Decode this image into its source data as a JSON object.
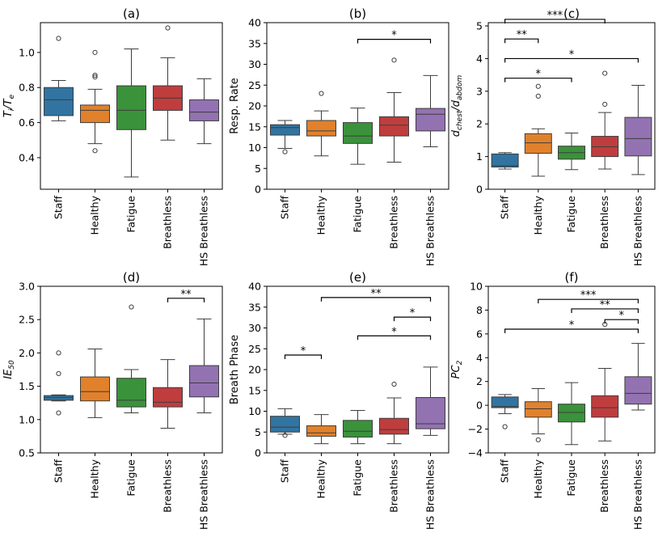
{
  "chart_data": [
    {
      "type": "box",
      "title": "(a)",
      "ylabel": "T_i/T_e",
      "ylabel_main": "T",
      "ylabel_sub1": "i",
      "ylabel_mid": "/T",
      "ylabel_sub2": "e",
      "ylim": [
        0.22,
        1.17
      ],
      "yticks": [
        0.4,
        0.6,
        0.8,
        1.0
      ],
      "ytick_labels": [
        "0.4",
        "0.6",
        "0.8",
        "1.0"
      ],
      "categories": [
        "Staff",
        "Healthy",
        "Fatigue",
        "Breathless",
        "HS Breathless"
      ],
      "colors": [
        "#3274a1",
        "#e1812c",
        "#3a923a",
        "#c03d3e",
        "#9372b2"
      ],
      "boxes": [
        {
          "whislo": 0.61,
          "q1": 0.64,
          "med": 0.73,
          "q3": 0.8,
          "whishi": 0.84,
          "fliers": [
            1.08
          ]
        },
        {
          "whislo": 0.48,
          "q1": 0.6,
          "med": 0.67,
          "q3": 0.7,
          "whishi": 0.79,
          "fliers": [
            1.0,
            0.87,
            0.86,
            0.44
          ]
        },
        {
          "whislo": 0.29,
          "q1": 0.56,
          "med": 0.67,
          "q3": 0.81,
          "whishi": 1.02,
          "fliers": []
        },
        {
          "whislo": 0.5,
          "q1": 0.67,
          "med": 0.74,
          "q3": 0.81,
          "whishi": 0.97,
          "fliers": [
            1.14
          ]
        },
        {
          "whislo": 0.48,
          "q1": 0.61,
          "med": 0.66,
          "q3": 0.73,
          "whishi": 0.85,
          "fliers": []
        }
      ],
      "annotations": []
    },
    {
      "type": "box",
      "title": "(b)",
      "ylabel": "Resp. Rate",
      "ylim": [
        0,
        40
      ],
      "yticks": [
        0,
        5,
        10,
        15,
        20,
        25,
        30,
        35,
        40
      ],
      "ytick_labels": [
        "0",
        "5",
        "10",
        "15",
        "20",
        "25",
        "30",
        "35",
        "40"
      ],
      "categories": [
        "Staff",
        "Healthy",
        "Fatigue",
        "Breathless",
        "HS Breathless"
      ],
      "colors": [
        "#3274a1",
        "#e1812c",
        "#3a923a",
        "#c03d3e",
        "#9372b2"
      ],
      "boxes": [
        {
          "whislo": 9.8,
          "q1": 13.0,
          "med": 14.8,
          "q3": 15.5,
          "whishi": 16.5,
          "fliers": [
            9.0
          ]
        },
        {
          "whislo": 8.0,
          "q1": 12.8,
          "med": 14.0,
          "q3": 16.5,
          "whishi": 18.8,
          "fliers": [
            23.0
          ]
        },
        {
          "whislo": 6.0,
          "q1": 11.0,
          "med": 12.8,
          "q3": 16.0,
          "whishi": 19.5,
          "fliers": []
        },
        {
          "whislo": 6.5,
          "q1": 12.8,
          "med": 15.4,
          "q3": 17.4,
          "whishi": 23.2,
          "fliers": [
            31.0
          ]
        },
        {
          "whislo": 10.2,
          "q1": 14.0,
          "med": 18.0,
          "q3": 19.4,
          "whishi": 27.3,
          "fliers": []
        }
      ],
      "annotations": [
        {
          "from": 2,
          "to": 4,
          "y": 36,
          "text": "*"
        }
      ]
    },
    {
      "type": "box",
      "title": "(c)",
      "ylabel": "d_chest/d_abdom",
      "ylabel_main": "d",
      "ylabel_sub1": "chest",
      "ylabel_mid": "/d",
      "ylabel_sub2": "abdom",
      "ylim": [
        0,
        5.1
      ],
      "yticks": [
        0,
        1,
        2,
        3,
        4,
        5
      ],
      "ytick_labels": [
        "0",
        "1",
        "2",
        "3",
        "4",
        "5"
      ],
      "categories": [
        "Staff",
        "Healthy",
        "Fatigue",
        "Breathless",
        "HS Breathless"
      ],
      "colors": [
        "#3274a1",
        "#e1812c",
        "#3a923a",
        "#c03d3e",
        "#9372b2"
      ],
      "boxes": [
        {
          "whislo": 0.62,
          "q1": 0.68,
          "med": 0.72,
          "q3": 1.08,
          "whishi": 1.12,
          "fliers": []
        },
        {
          "whislo": 0.4,
          "q1": 1.1,
          "med": 1.42,
          "q3": 1.7,
          "whishi": 1.85,
          "fliers": [
            3.15,
            2.85
          ]
        },
        {
          "whislo": 0.6,
          "q1": 0.92,
          "med": 1.12,
          "q3": 1.32,
          "whishi": 1.72,
          "fliers": []
        },
        {
          "whislo": 0.62,
          "q1": 1.0,
          "med": 1.3,
          "q3": 1.62,
          "whishi": 2.35,
          "fliers": [
            3.55,
            2.6
          ]
        },
        {
          "whislo": 0.45,
          "q1": 1.02,
          "med": 1.55,
          "q3": 2.2,
          "whishi": 3.18,
          "fliers": []
        }
      ],
      "annotations": [
        {
          "from": 0,
          "to": 3,
          "y": 5.2,
          "text": "***"
        },
        {
          "from": 0,
          "to": 1,
          "y": 4.6,
          "text": "**"
        },
        {
          "from": 0,
          "to": 4,
          "y": 4.0,
          "text": "*"
        },
        {
          "from": 0,
          "to": 2,
          "y": 3.4,
          "text": "*"
        }
      ]
    },
    {
      "type": "box",
      "title": "(d)",
      "ylabel": "IE_50",
      "ylabel_main": "IE",
      "ylabel_sub1": "50",
      "ylim": [
        0.5,
        3.0
      ],
      "yticks": [
        0.5,
        1.0,
        1.5,
        2.0,
        2.5,
        3.0
      ],
      "ytick_labels": [
        "0.5",
        "1.0",
        "1.5",
        "2.0",
        "2.5",
        "3.0"
      ],
      "categories": [
        "Staff",
        "Healthy",
        "Fatigue",
        "Breathless",
        "HS Breathless"
      ],
      "colors": [
        "#3274a1",
        "#e1812c",
        "#3a923a",
        "#c03d3e",
        "#9372b2"
      ],
      "boxes": [
        {
          "whislo": 1.28,
          "q1": 1.29,
          "med": 1.33,
          "q3": 1.36,
          "whishi": 1.37,
          "fliers": [
            2.0,
            1.69,
            1.1
          ]
        },
        {
          "whislo": 1.03,
          "q1": 1.28,
          "med": 1.42,
          "q3": 1.64,
          "whishi": 2.06,
          "fliers": []
        },
        {
          "whislo": 1.1,
          "q1": 1.19,
          "med": 1.29,
          "q3": 1.62,
          "whishi": 1.75,
          "fliers": [
            2.69
          ]
        },
        {
          "whislo": 0.87,
          "q1": 1.19,
          "med": 1.26,
          "q3": 1.48,
          "whishi": 1.9,
          "fliers": []
        },
        {
          "whislo": 1.1,
          "q1": 1.34,
          "med": 1.55,
          "q3": 1.81,
          "whishi": 2.51,
          "fliers": []
        }
      ],
      "annotations": [
        {
          "from": 3,
          "to": 4,
          "y": 2.82,
          "text": "**"
        }
      ]
    },
    {
      "type": "box",
      "title": "(e)",
      "ylabel": "Breath Phase",
      "ylim": [
        0,
        40
      ],
      "yticks": [
        0,
        5,
        10,
        15,
        20,
        25,
        30,
        35,
        40
      ],
      "ytick_labels": [
        "0",
        "5",
        "10",
        "15",
        "20",
        "25",
        "30",
        "35",
        "40"
      ],
      "categories": [
        "Staff",
        "Healthy",
        "Fatigue",
        "Breathless",
        "HS Breathless"
      ],
      "colors": [
        "#3274a1",
        "#e1812c",
        "#3a923a",
        "#c03d3e",
        "#9372b2"
      ],
      "boxes": [
        {
          "whislo": 4.5,
          "q1": 5.0,
          "med": 6.2,
          "q3": 8.8,
          "whishi": 10.6,
          "fliers": [
            4.2
          ]
        },
        {
          "whislo": 2.2,
          "q1": 4.0,
          "med": 4.8,
          "q3": 6.5,
          "whishi": 9.2,
          "fliers": []
        },
        {
          "whislo": 2.2,
          "q1": 3.8,
          "med": 5.2,
          "q3": 7.8,
          "whishi": 10.2,
          "fliers": []
        },
        {
          "whislo": 2.2,
          "q1": 4.5,
          "med": 5.6,
          "q3": 8.3,
          "whishi": 13.2,
          "fliers": [
            16.5
          ]
        },
        {
          "whislo": 4.2,
          "q1": 5.8,
          "med": 7.0,
          "q3": 13.3,
          "whishi": 20.6,
          "fliers": []
        }
      ],
      "annotations": [
        {
          "from": 1,
          "to": 4,
          "y": 37.3,
          "text": "**"
        },
        {
          "from": 3,
          "to": 4,
          "y": 32.6,
          "text": "*"
        },
        {
          "from": 2,
          "to": 4,
          "y": 28.1,
          "text": "*"
        },
        {
          "from": 0,
          "to": 1,
          "y": 23.5,
          "text": "*"
        }
      ]
    },
    {
      "type": "box",
      "title": "(f)",
      "ylabel": "PC_2",
      "ylabel_main": "PC",
      "ylabel_sub1": "2",
      "ylim": [
        -4,
        10
      ],
      "yticks": [
        -4,
        -2,
        0,
        2,
        4,
        6,
        8,
        10
      ],
      "ytick_labels": [
        "−4",
        "−2",
        "0",
        "2",
        "4",
        "6",
        "8",
        "10"
      ],
      "categories": [
        "Staff",
        "Healthy",
        "Fatigue",
        "Breathless",
        "HS Breathless"
      ],
      "colors": [
        "#3274a1",
        "#e1812c",
        "#3a923a",
        "#c03d3e",
        "#9372b2"
      ],
      "boxes": [
        {
          "whislo": -0.7,
          "q1": -0.2,
          "med": -0.1,
          "q3": 0.7,
          "whishi": 0.9,
          "fliers": [
            -1.8
          ]
        },
        {
          "whislo": -2.4,
          "q1": -1.0,
          "med": -0.3,
          "q3": 0.3,
          "whishi": 1.4,
          "fliers": [
            -2.9
          ]
        },
        {
          "whislo": -3.3,
          "q1": -1.4,
          "med": -0.6,
          "q3": 0.1,
          "whishi": 1.9,
          "fliers": []
        },
        {
          "whislo": -3.0,
          "q1": -1.0,
          "med": -0.2,
          "q3": 0.8,
          "whishi": 3.1,
          "fliers": [
            6.8
          ]
        },
        {
          "whislo": -0.4,
          "q1": 0.1,
          "med": 1.0,
          "q3": 2.4,
          "whishi": 5.2,
          "fliers": []
        }
      ],
      "annotations": [
        {
          "from": 1,
          "to": 4,
          "y": 8.9,
          "text": "***"
        },
        {
          "from": 2,
          "to": 4,
          "y": 8.1,
          "text": "**"
        },
        {
          "from": 3,
          "to": 4,
          "y": 7.2,
          "text": "*"
        },
        {
          "from": 0,
          "to": 4,
          "y": 6.4,
          "text": "*"
        }
      ]
    }
  ]
}
